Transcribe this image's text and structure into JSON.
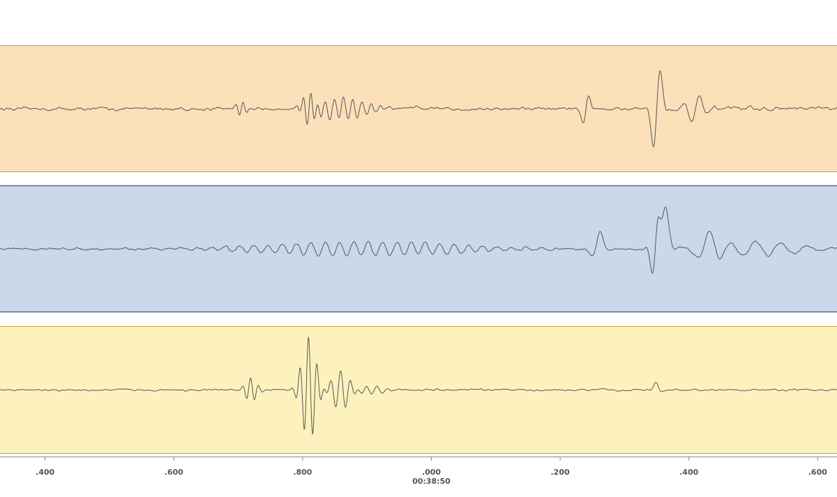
{
  "chart_data": {
    "type": "line",
    "description_free": true,
    "x_axis": {
      "ticks": [
        {
          "value": 0.4,
          "label": ".400"
        },
        {
          "value": 0.6,
          "label": ".600"
        },
        {
          "value": 0.8,
          "label": ".800"
        },
        {
          "value": 1.0,
          "label": ".000",
          "sublabel": "00:38:50"
        },
        {
          "value": 1.2,
          "label": ".200"
        },
        {
          "value": 1.4,
          "label": ".400"
        },
        {
          "value": 1.6,
          "label": ".600"
        }
      ],
      "range": [
        0.33,
        1.63
      ]
    },
    "tracks": [
      {
        "id": "trace-1",
        "background": "#fbe0b9",
        "border": "#c9a227",
        "line_color": "#555555",
        "bursts": [
          {
            "center": 0.705,
            "amp": 0.12,
            "width": 0.01,
            "freq": 85
          },
          {
            "center": 0.81,
            "amp": 0.38,
            "width": 0.012,
            "freq": 80
          },
          {
            "center": 0.86,
            "amp": 0.18,
            "width": 0.05,
            "freq": 70
          },
          {
            "center": 1.24,
            "amp": 0.36,
            "width": 0.008,
            "freq": 40
          },
          {
            "center": 1.35,
            "amp": 0.95,
            "width": 0.01,
            "freq": 35
          },
          {
            "center": 1.41,
            "amp": 0.22,
            "width": 0.02,
            "freq": 40
          }
        ],
        "noise": 0.035
      },
      {
        "id": "trace-2",
        "background": "#c9d9ea",
        "border": "#1f3f7a",
        "line_color": "#555555",
        "bursts": [
          {
            "center": 0.9,
            "amp": 0.12,
            "width": 0.2,
            "freq": 45
          },
          {
            "center": 1.26,
            "amp": 0.32,
            "width": 0.012,
            "freq": 30
          },
          {
            "center": 1.35,
            "amp": 0.6,
            "width": 0.01,
            "freq": 45
          },
          {
            "center": 1.36,
            "amp": 0.9,
            "width": 0.012,
            "freq": 22
          },
          {
            "center": 1.43,
            "amp": 0.3,
            "width": 0.02,
            "freq": 25
          },
          {
            "center": 1.5,
            "amp": 0.12,
            "width": 0.1,
            "freq": 25
          }
        ],
        "noise": 0.025
      },
      {
        "id": "trace-3",
        "background": "#fdf2bd",
        "border": "#c9a227",
        "line_color": "#555555",
        "bursts": [
          {
            "center": 0.72,
            "amp": 0.2,
            "width": 0.012,
            "freq": 80
          },
          {
            "center": 0.81,
            "amp": 0.9,
            "width": 0.015,
            "freq": 75
          },
          {
            "center": 0.86,
            "amp": 0.35,
            "width": 0.02,
            "freq": 65
          },
          {
            "center": 0.9,
            "amp": 0.08,
            "width": 0.03,
            "freq": 60
          },
          {
            "center": 1.35,
            "amp": 0.12,
            "width": 0.008,
            "freq": 40
          }
        ],
        "noise": 0.02
      }
    ]
  }
}
